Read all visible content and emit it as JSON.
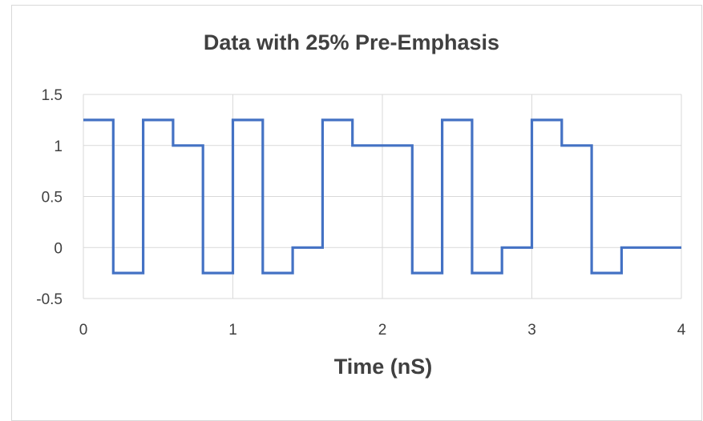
{
  "chart_data": {
    "type": "line",
    "title": "Data with 25% Pre-Emphasis",
    "xlabel": "Time (nS)",
    "ylabel": "",
    "xlim": [
      0,
      4
    ],
    "ylim": [
      -0.5,
      1.5
    ],
    "x_ticks": [
      "0",
      "1",
      "2",
      "3",
      "4"
    ],
    "y_ticks": [
      "1.5",
      "1",
      "0.5",
      "0",
      "-0.5"
    ],
    "x_tick_values": [
      0,
      1,
      2,
      3,
      4
    ],
    "y_tick_values": [
      1.5,
      1,
      0.5,
      0,
      -0.5
    ],
    "grid": true,
    "step": true,
    "series": [
      {
        "color": "#4472c4",
        "x": [
          0,
          0.2,
          0.2,
          0.4,
          0.4,
          0.6,
          0.6,
          0.8,
          0.8,
          1.0,
          1.0,
          1.2,
          1.2,
          1.4,
          1.4,
          1.6,
          1.6,
          1.8,
          1.8,
          2.2,
          2.2,
          2.4,
          2.4,
          2.6,
          2.6,
          2.8,
          2.8,
          3.0,
          3.0,
          3.2,
          3.2,
          3.4,
          3.4,
          3.6,
          3.6,
          4.0
        ],
        "y": [
          1.25,
          1.25,
          -0.25,
          -0.25,
          1.25,
          1.25,
          1.0,
          1.0,
          -0.25,
          -0.25,
          1.25,
          1.25,
          -0.25,
          -0.25,
          0,
          0,
          1.25,
          1.25,
          1.0,
          1.0,
          -0.25,
          -0.25,
          1.25,
          1.25,
          -0.25,
          -0.25,
          0,
          0,
          1.25,
          1.25,
          1.0,
          1.0,
          -0.25,
          -0.25,
          0,
          0
        ]
      }
    ]
  }
}
